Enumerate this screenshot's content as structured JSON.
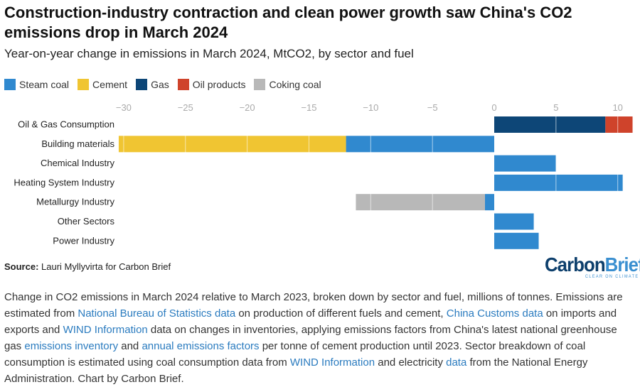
{
  "title": "Construction-industry contraction and clean power growth saw China's CO2 emissions drop in March 2024",
  "subtitle": "Year-on-year change in emissions in March 2024, MtCO2, by sector and fuel",
  "source_label": "Source:",
  "source_text": " Lauri Myllyvirta for Carbon Brief",
  "logo": {
    "part1": "Carbon",
    "part2": "Brief",
    "tagline": "CLEAR ON CLIMATE"
  },
  "caption": [
    {
      "t": "Change in CO2 emissions in March 2024 relative to March 2023, broken down by sector and fuel, millions of tonnes. Emissions are estimated from "
    },
    {
      "t": "National Bureau of Statistics data",
      "link": true
    },
    {
      "t": " on production of different fuels and cement, "
    },
    {
      "t": "China Customs data",
      "link": true
    },
    {
      "t": " on imports and exports and "
    },
    {
      "t": "WIND Information",
      "link": true
    },
    {
      "t": " data on changes in inventories, applying emissions factors from China's latest national greenhouse gas "
    },
    {
      "t": "emissions inventory",
      "link": true
    },
    {
      "t": " and "
    },
    {
      "t": "annual emissions factors",
      "link": true
    },
    {
      "t": " per tonne of cement production until 2023. Sector breakdown of coal consumption is estimated using coal consumption data from "
    },
    {
      "t": "WIND Information",
      "link": true
    },
    {
      "t": " and electricity "
    },
    {
      "t": "data",
      "link": true
    },
    {
      "t": " from the National Energy Administration. Chart by Carbon Brief."
    }
  ],
  "chart_data": {
    "type": "bar",
    "orientation": "horizontal-stacked",
    "title": "Construction-industry contraction and clean power growth saw China's CO2 emissions drop in March 2024",
    "xlabel": "MtCO2",
    "ylabel": "",
    "xlim": [
      -30,
      11.5
    ],
    "xticks": [
      -30,
      -25,
      -20,
      -15,
      -10,
      -5,
      0,
      5,
      10
    ],
    "grid": true,
    "legend_position": "top-left",
    "categories": [
      "Oil & Gas Consumption",
      "Building materials",
      "Chemical Industry",
      "Heating System Industry",
      "Metallurgy Industry",
      "Other Sectors",
      "Power Industry"
    ],
    "series": [
      {
        "name": "Steam coal",
        "color": "#3089cf",
        "values": [
          0,
          -12.0,
          5.0,
          10.4,
          -0.75,
          3.2,
          3.6
        ]
      },
      {
        "name": "Cement",
        "color": "#f0c532",
        "values": [
          0,
          -18.4,
          0,
          0,
          0,
          0,
          0
        ]
      },
      {
        "name": "Gas",
        "color": "#0d4677",
        "values": [
          9.0,
          0,
          0,
          0,
          0,
          0,
          0
        ]
      },
      {
        "name": "Oil products",
        "color": "#cf432b",
        "values": [
          2.2,
          0,
          0,
          0,
          0,
          0,
          0
        ]
      },
      {
        "name": "Coking coal",
        "color": "#b8b8b8",
        "values": [
          0,
          0,
          0,
          0,
          -10.45,
          0,
          0
        ]
      }
    ]
  }
}
